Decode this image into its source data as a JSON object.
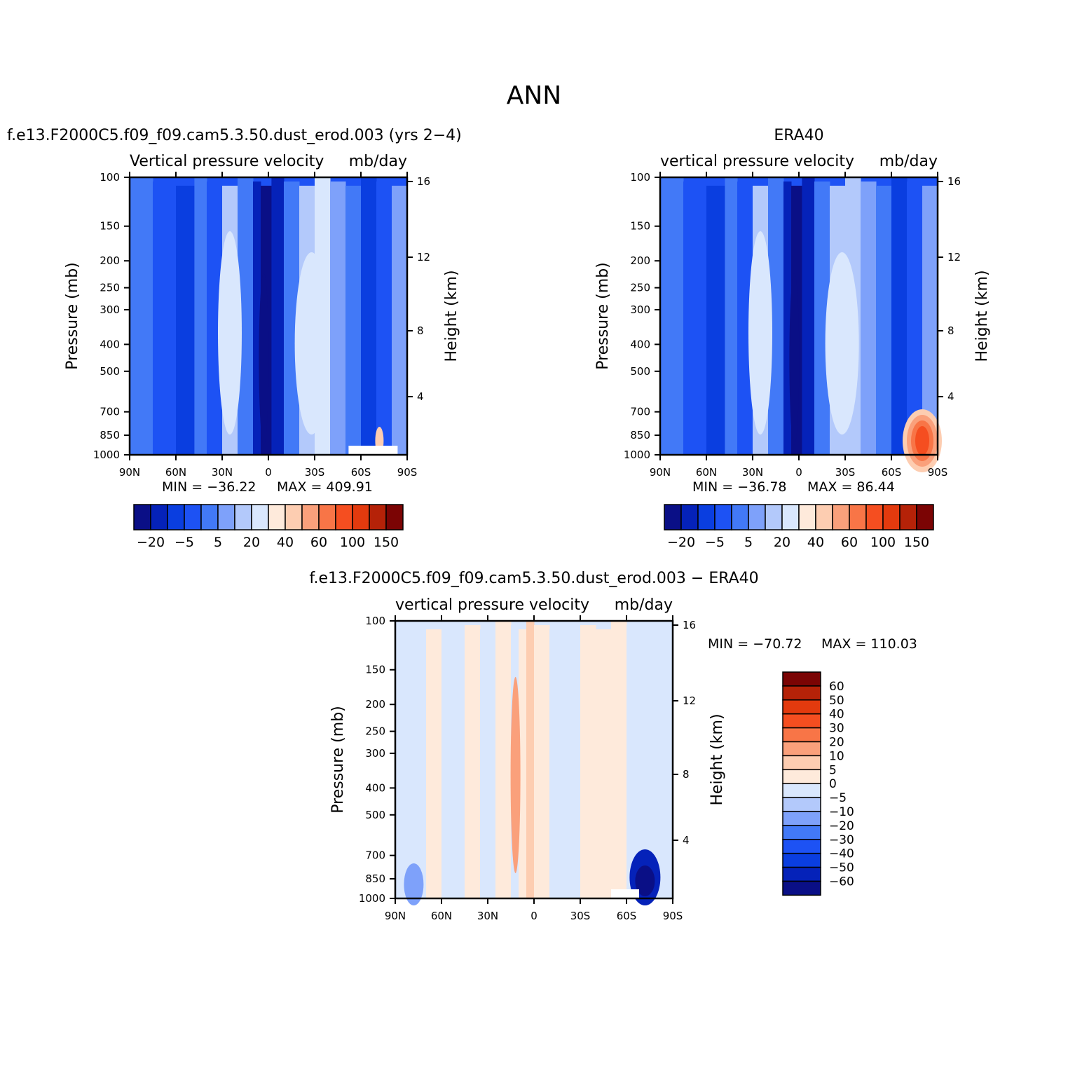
{
  "main_title": "ANN",
  "colors": {
    "seq": [
      "#0a0f86",
      "#0522b9",
      "#0a3ee0",
      "#1d52f4",
      "#4279f7",
      "#7ea1fa",
      "#b3c9fb",
      "#d9e7fd",
      "#feeadb",
      "#fdcdb1",
      "#faa07b",
      "#f87547",
      "#f54e20",
      "#e33a0e",
      "#b52208",
      "#7b0404"
    ],
    "diff": [
      "#0a0f86",
      "#0522b9",
      "#0a3ee0",
      "#1d52f4",
      "#4279f7",
      "#7ea1fa",
      "#b3c9fb",
      "#d9e7fd",
      "#feeadb",
      "#fdcdb1",
      "#faa07b",
      "#f87547",
      "#f54e20",
      "#e33a0e",
      "#b52208",
      "#7b0404"
    ]
  },
  "chart_data": [
    {
      "id": "model",
      "type": "heatmap",
      "title": "f.e13.F2000C5.f09_f09.cam5.3.50.dust_erod.003 (yrs 2−4)",
      "left_header": "Vertical  pressure  velocity",
      "right_header": "mb/day",
      "ylabel": "Pressure  (mb)",
      "y2label": "Height  (km)",
      "x_ticks": [
        "90N",
        "60N",
        "30N",
        "0",
        "30S",
        "60S",
        "90S"
      ],
      "y_ticks": [
        "100",
        "150",
        "200",
        "250",
        "300",
        "400",
        "500",
        "700",
        "850",
        "1000"
      ],
      "y2_ticks": [
        "16",
        "12",
        "8",
        "4"
      ],
      "ylim": [
        1000,
        100
      ],
      "min_label": "MIN  =  −36.22",
      "max_label": "MAX  =  409.91",
      "colorbar_labels": [
        "−20",
        "−5",
        "5",
        "20",
        "40",
        "60",
        "100",
        "150"
      ],
      "columns": [
        {
          "lat": 90,
          "level": 4
        },
        {
          "lat": 75,
          "level": 3
        },
        {
          "lat": 60,
          "level": 2
        },
        {
          "lat": 48,
          "level": 4
        },
        {
          "lat": 40,
          "level": 3
        },
        {
          "lat": 30,
          "level": 6
        },
        {
          "lat": 20,
          "level": 4
        },
        {
          "lat": 10,
          "level": 1
        },
        {
          "lat": 5,
          "level": 0
        },
        {
          "lat": -2,
          "level": 1
        },
        {
          "lat": -10,
          "level": 4
        },
        {
          "lat": -20,
          "level": 6
        },
        {
          "lat": -30,
          "level": 7
        },
        {
          "lat": -40,
          "level": 5
        },
        {
          "lat": -50,
          "level": 4
        },
        {
          "lat": -60,
          "level": 2
        },
        {
          "lat": -70,
          "level": 3
        },
        {
          "lat": -80,
          "level": 5
        },
        {
          "lat": -90,
          "level": 5
        }
      ]
    },
    {
      "id": "obs",
      "type": "heatmap",
      "title": "ERA40",
      "left_header": "vertical  pressure  velocity",
      "right_header": "mb/day",
      "ylabel": "Pressure  (mb)",
      "y2label": "Height  (km)",
      "x_ticks": [
        "90N",
        "60N",
        "30N",
        "0",
        "30S",
        "60S",
        "90S"
      ],
      "y_ticks": [
        "100",
        "150",
        "200",
        "250",
        "300",
        "400",
        "500",
        "700",
        "850",
        "1000"
      ],
      "y2_ticks": [
        "16",
        "12",
        "8",
        "4"
      ],
      "ylim": [
        1000,
        100
      ],
      "min_label": "MIN  =  −36.78",
      "max_label": "MAX  =   86.44",
      "colorbar_labels": [
        "−20",
        "−5",
        "5",
        "20",
        "40",
        "60",
        "100",
        "150"
      ],
      "columns": [
        {
          "lat": 90,
          "level": 4
        },
        {
          "lat": 75,
          "level": 3
        },
        {
          "lat": 60,
          "level": 2
        },
        {
          "lat": 48,
          "level": 4
        },
        {
          "lat": 40,
          "level": 3
        },
        {
          "lat": 30,
          "level": 6
        },
        {
          "lat": 20,
          "level": 4
        },
        {
          "lat": 10,
          "level": 1
        },
        {
          "lat": 5,
          "level": 0
        },
        {
          "lat": -2,
          "level": 1
        },
        {
          "lat": -10,
          "level": 4
        },
        {
          "lat": -20,
          "level": 6
        },
        {
          "lat": -30,
          "level": 6
        },
        {
          "lat": -40,
          "level": 5
        },
        {
          "lat": -50,
          "level": 4
        },
        {
          "lat": -60,
          "level": 2
        },
        {
          "lat": -70,
          "level": 3
        },
        {
          "lat": -80,
          "level": 5
        },
        {
          "lat": -90,
          "level": 5
        }
      ]
    },
    {
      "id": "diff",
      "type": "heatmap",
      "title": "f.e13.F2000C5.f09_f09.cam5.3.50.dust_erod.003  −  ERA40",
      "left_header": "vertical  pressure  velocity",
      "right_header": "mb/day",
      "ylabel": "Pressure  (mb)",
      "y2label": "Height  (km)",
      "x_ticks": [
        "90N",
        "60N",
        "30N",
        "0",
        "30S",
        "60S",
        "90S"
      ],
      "y_ticks": [
        "100",
        "150",
        "200",
        "250",
        "300",
        "400",
        "500",
        "700",
        "850",
        "1000"
      ],
      "y2_ticks": [
        "16",
        "12",
        "8",
        "4"
      ],
      "ylim": [
        1000,
        100
      ],
      "min_label": "MIN  =  −70.72",
      "max_label": "MAX  =  110.03",
      "colorbar_labels": [
        "60",
        "50",
        "40",
        "30",
        "20",
        "10",
        "5",
        "0",
        "−5",
        "−10",
        "−20",
        "−30",
        "−40",
        "−50",
        "−60"
      ],
      "columns": [
        {
          "lat": 90,
          "level": 7
        },
        {
          "lat": 80,
          "level": 7
        },
        {
          "lat": 70,
          "level": 8
        },
        {
          "lat": 60,
          "level": 7
        },
        {
          "lat": 45,
          "level": 8
        },
        {
          "lat": 35,
          "level": 7
        },
        {
          "lat": 25,
          "level": 8
        },
        {
          "lat": 15,
          "level": 7
        },
        {
          "lat": 10,
          "level": 8
        },
        {
          "lat": 5,
          "level": 9
        },
        {
          "lat": 0,
          "level": 8
        },
        {
          "lat": -10,
          "level": 7
        },
        {
          "lat": -20,
          "level": 7
        },
        {
          "lat": -30,
          "level": 8
        },
        {
          "lat": -40,
          "level": 8
        },
        {
          "lat": -50,
          "level": 8
        },
        {
          "lat": -60,
          "level": 7
        },
        {
          "lat": -75,
          "level": 7
        },
        {
          "lat": -90,
          "level": 7
        }
      ]
    }
  ]
}
